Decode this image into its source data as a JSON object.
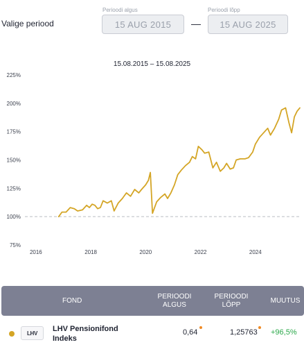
{
  "period": {
    "label": "Valige periood",
    "start": {
      "caption": "Perioodi algus",
      "value": "15 AUG 2015"
    },
    "separator": "—",
    "end": {
      "caption": "Perioodi lõpp",
      "value": "15 AUG 2025"
    }
  },
  "chart_data": {
    "type": "line",
    "title": "15.08.2015 – 15.08.2025",
    "xlabel": "",
    "ylabel": "",
    "xlim": [
      2015.6,
      2025.62
    ],
    "ylim": [
      75,
      225
    ],
    "y_ticks": [
      75,
      100,
      125,
      150,
      175,
      200,
      225
    ],
    "y_tick_labels": [
      "75%",
      "100%",
      "125%",
      "150%",
      "175%",
      "200%",
      "225%"
    ],
    "x_ticks": [
      2016,
      2018,
      2020,
      2022,
      2024
    ],
    "x_tick_labels": [
      "2016",
      "2018",
      "2020",
      "2022",
      "2024"
    ],
    "reference_line": 100,
    "grid": false,
    "line_color": "#d4a525",
    "series": [
      {
        "values": [
          [
            2016.83,
            100
          ],
          [
            2016.95,
            104
          ],
          [
            2017.1,
            104
          ],
          [
            2017.25,
            108
          ],
          [
            2017.4,
            107
          ],
          [
            2017.52,
            105
          ],
          [
            2017.7,
            106
          ],
          [
            2017.85,
            110
          ],
          [
            2017.95,
            108
          ],
          [
            2018.05,
            111
          ],
          [
            2018.15,
            110
          ],
          [
            2018.25,
            107
          ],
          [
            2018.35,
            108
          ],
          [
            2018.45,
            114
          ],
          [
            2018.6,
            112
          ],
          [
            2018.75,
            114
          ],
          [
            2018.85,
            105
          ],
          [
            2019.0,
            112
          ],
          [
            2019.15,
            116
          ],
          [
            2019.3,
            121
          ],
          [
            2019.45,
            118
          ],
          [
            2019.6,
            124
          ],
          [
            2019.75,
            121
          ],
          [
            2019.85,
            124
          ],
          [
            2020.0,
            128
          ],
          [
            2020.1,
            132
          ],
          [
            2020.17,
            139
          ],
          [
            2020.25,
            103
          ],
          [
            2020.4,
            113
          ],
          [
            2020.55,
            117
          ],
          [
            2020.7,
            120
          ],
          [
            2020.8,
            116
          ],
          [
            2020.92,
            121
          ],
          [
            2021.05,
            128
          ],
          [
            2021.17,
            137
          ],
          [
            2021.3,
            141
          ],
          [
            2021.45,
            145
          ],
          [
            2021.6,
            148
          ],
          [
            2021.7,
            153
          ],
          [
            2021.82,
            151
          ],
          [
            2021.92,
            162
          ],
          [
            2022.05,
            159
          ],
          [
            2022.15,
            156
          ],
          [
            2022.3,
            157
          ],
          [
            2022.45,
            143
          ],
          [
            2022.58,
            148
          ],
          [
            2022.72,
            140
          ],
          [
            2022.85,
            143
          ],
          [
            2022.95,
            147
          ],
          [
            2023.08,
            142
          ],
          [
            2023.2,
            143
          ],
          [
            2023.3,
            150
          ],
          [
            2023.45,
            151
          ],
          [
            2023.62,
            151
          ],
          [
            2023.75,
            152
          ],
          [
            2023.9,
            157
          ],
          [
            2024.0,
            164
          ],
          [
            2024.15,
            170
          ],
          [
            2024.3,
            174
          ],
          [
            2024.45,
            178
          ],
          [
            2024.55,
            172
          ],
          [
            2024.7,
            178
          ],
          [
            2024.85,
            186
          ],
          [
            2024.95,
            194
          ],
          [
            2025.1,
            196
          ],
          [
            2025.22,
            183
          ],
          [
            2025.32,
            174
          ],
          [
            2025.42,
            188
          ],
          [
            2025.52,
            193
          ],
          [
            2025.62,
            196
          ]
        ]
      }
    ]
  },
  "table": {
    "headers": {
      "fund": "FOND",
      "start_line1": "PERIOODI",
      "start_line2": "ALGUS",
      "end_line1": "PERIOODI",
      "end_line2": "LÕPP",
      "change": "MUUTUS"
    },
    "rows": [
      {
        "logo_text": "LHV",
        "name_line1": "LHV Pensionifond",
        "name_line2": "Indeks",
        "start_value": "0,64",
        "end_value": "1,25763",
        "change": "+96,5%"
      }
    ]
  },
  "colors": {
    "fund_dot": "#d4a525",
    "value_marker": "#f08a24",
    "positive_change": "#2ba84a",
    "table_header_bg": "#7d8093"
  }
}
